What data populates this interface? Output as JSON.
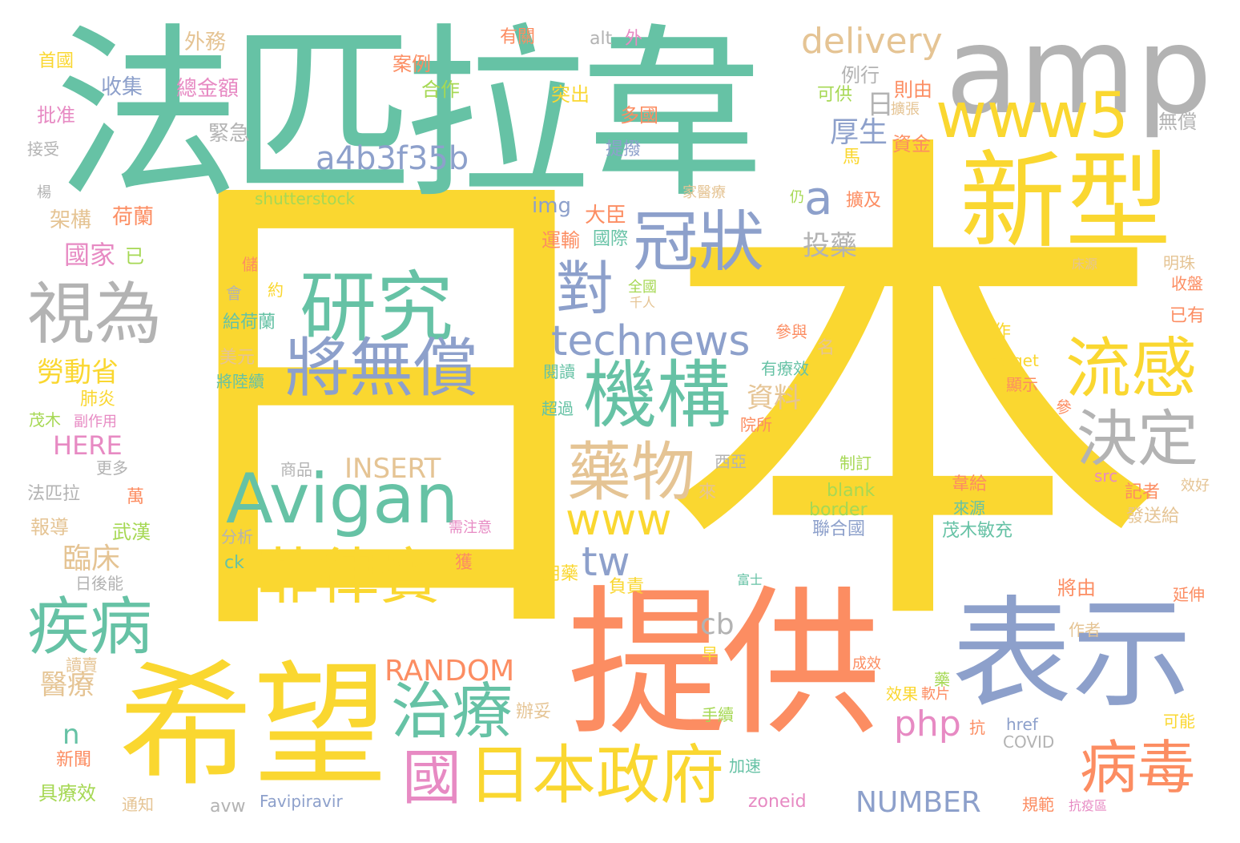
{
  "palette": {
    "yellow": "#fad730",
    "teal": "#66c2a5",
    "orange": "#fc8d62",
    "blue": "#8da0cb",
    "pink": "#e78ac3",
    "green": "#a6d854",
    "tan": "#e5c494",
    "gray": "#b3b3b3"
  },
  "words": {
    "ri": "日",
    "ben": "本",
    "fapilawei": "法匹拉韋",
    "amp": "amp",
    "tigong": "提供",
    "xiwang": "希望",
    "biaoshi": "表示",
    "xinxing": "新型",
    "guanzhuang": "冠狀",
    "www5": "www5",
    "delivery": "delivery",
    "a4b3f35b": "a4b3f35b",
    "a": "a",
    "yanjiu": "研究",
    "jiangwuchang": "將無償",
    "avigan": "Avigan",
    "feilubin": "菲律賓",
    "jigou": "機構",
    "yaowu": "藥物",
    "dui": "對",
    "technews": "technews",
    "liugan": "流感",
    "jueding": "決定",
    "shiwei": "視為",
    "jibing": "疾病",
    "zhiliao": "治療",
    "riben_zhengfu": "日本政府",
    "guo": "國",
    "bingdu": "病毒",
    "www": "www",
    "tw": "tw",
    "cb": "cb",
    "random": "RANDOM",
    "php": "php",
    "number": "NUMBER",
    "insert": "INSERT",
    "here": "HERE",
    "n": "n",
    "housheng": "厚生",
    "ri_small": "日",
    "toyao": "投藥",
    "ziliao": "資料",
    "linchuang": "臨床",
    "yiliao": "醫療",
    "guojia": "國家",
    "yi_small": "已",
    "laodongsheng": "勞動省",
    "jiagou": "架構",
    "helan": "荷蘭",
    "shutterstock": "shutterstock",
    "img": "img",
    "dachen": "大臣",
    "yunshu": "運輸",
    "guoji": "國際",
    "waiwu": "外務",
    "youguan": "有關",
    "alt": "alt",
    "wai": "外",
    "shouguo": "首國",
    "anli": "案例",
    "hezuo": "合作",
    "lixing": "例行",
    "shouji": "收集",
    "zongjine": "總金額",
    "tuchu": "突出",
    "duoguo": "多國",
    "zeyou": "則由",
    "pizhun": "批准",
    "jinji": "緊急",
    "tibo": "提撥",
    "zijin": "資金",
    "kegong": "可供",
    "kuozhang": "擴張",
    "wuchang": "無償",
    "jieshou": "接受",
    "ma": "馬",
    "yang": "楊",
    "jiayiliao": "家醫療",
    "reng": "仍",
    "kuoji": "擴及",
    "chuangyuan": "床源",
    "mingzhu": "明珠",
    "shoupan": "收盤",
    "quanguo": "全國",
    "qianren": "千人",
    "chu": "儲",
    "yue": "約",
    "hui": "會",
    "geihelan": "給荷蘭",
    "meiyuan": "美元",
    "jianglu": "將陸續",
    "canyu": "參與",
    "ming": "名",
    "youliaoxiao": "有療效",
    "gongzuo": "工作",
    "yiyou": "已有",
    "yuedu": "閱讀",
    "target": "target",
    "xianshi": "顯示",
    "feiyan": "肺炎",
    "maomu": "茂木",
    "fuzuoyong": "副作用",
    "chaoguo": "超過",
    "yuansuo": "院所",
    "can": "參",
    "gengduo": "更多",
    "shangpin": "商品",
    "xiya": "西亞",
    "zhiding": "制訂",
    "xiaohao": "效好",
    "wan": "萬",
    "fapila": "法匹拉",
    "blank": "blank",
    "weigei": "韋給",
    "src": "src",
    "jizhe": "記者",
    "lai": "來",
    "border": "border",
    "laiyuan": "來源",
    "baodao": "報導",
    "wuhan": "武漢",
    "xuzhuyi": "需注意",
    "lianheguo": "聯合國",
    "maomumingchong": "茂木敏充",
    "fasonggei": "發送給",
    "fenxi": "分析",
    "huo": "獲",
    "ck": "ck",
    "yongyao": "用藥",
    "fushi": "富士",
    "jiangyou": "將由",
    "rihouneng": "日後能",
    "fuze": "負責",
    "yanshen": "延伸",
    "zuozhe": "作者",
    "zao": "早",
    "duzhai": "讀賣",
    "chengxiao": "成效",
    "yao": "藥",
    "xiaoguo": "效果",
    "ruanpian": "軟片",
    "banto": "辦妥",
    "shouxu": "手續",
    "kang": "抗",
    "href": "href",
    "keneng": "可能",
    "covid": "COVID",
    "xinwen": "新聞",
    "jiasu": "加速",
    "juliaoxiao": "具療效",
    "tongzhi": "通知",
    "avw": "avw",
    "favipiravir": "Favipiravir",
    "zoneid": "zoneid",
    "guifan": "規範",
    "kangyiqu": "抗疫區"
  }
}
